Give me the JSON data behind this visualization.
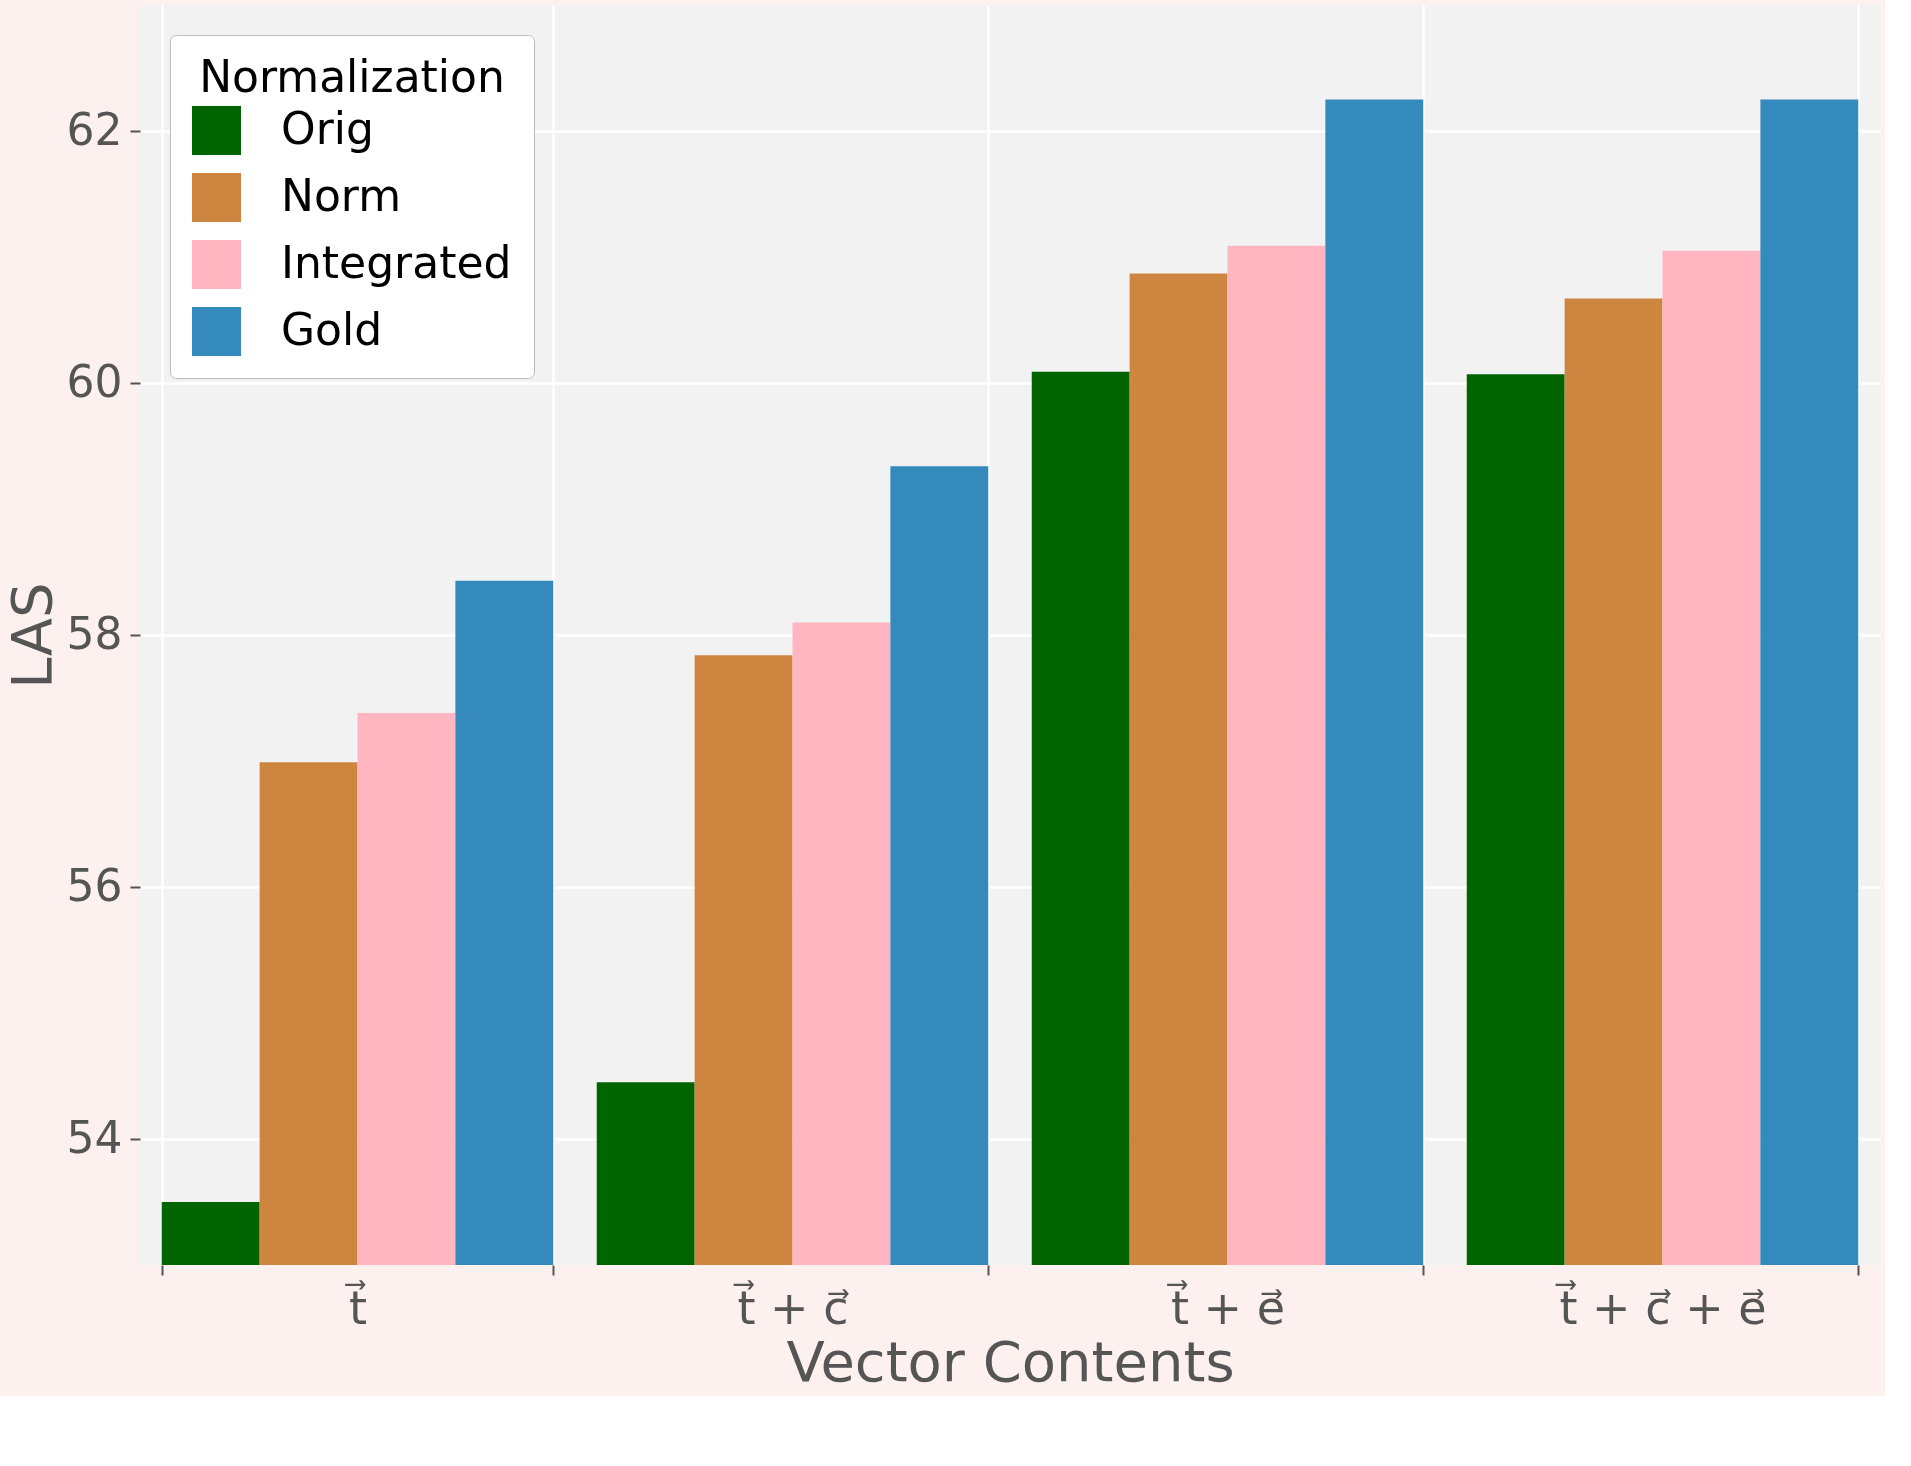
{
  "chart_data": {
    "type": "bar",
    "xlabel": "Vector Contents",
    "ylabel": "LAS",
    "legend_title": "Normalization",
    "categories": [
      "t⃗",
      "t⃗ + c⃗",
      "t⃗ + e⃗",
      "t⃗ + c⃗ + e⃗"
    ],
    "series": [
      {
        "name": "Orig",
        "color": "#006400",
        "values": [
          53.5,
          54.45,
          60.09,
          60.07
        ]
      },
      {
        "name": "Norm",
        "color": "#cd853f",
        "values": [
          56.99,
          57.84,
          60.87,
          60.67
        ]
      },
      {
        "name": "Integrated",
        "color": "#ffb6c1",
        "values": [
          57.38,
          58.1,
          61.09,
          61.05
        ]
      },
      {
        "name": "Gold",
        "color": "#348abd",
        "values": [
          58.43,
          59.34,
          62.25,
          62.25
        ]
      }
    ],
    "ylim": [
      53,
      63
    ],
    "yticks": [
      54,
      56,
      58,
      60,
      62
    ],
    "grid": true,
    "legend": "top left"
  }
}
